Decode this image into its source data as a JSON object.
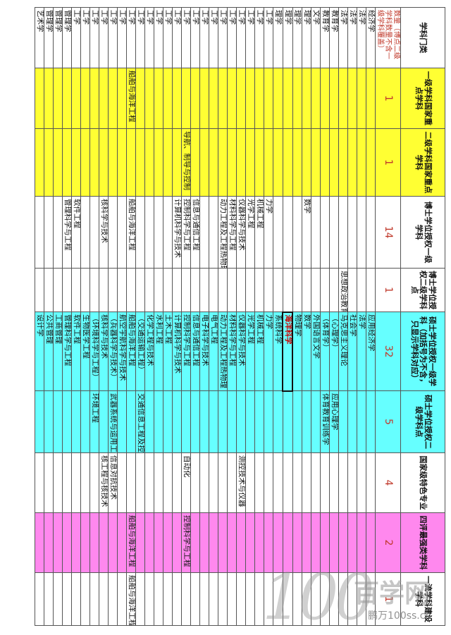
{
  "headers": {
    "category": "学科门类",
    "nat_key_l1": "一级学科国家重点学科",
    "nat_key_l2": "二级学科国家重点学科",
    "phd_l1": "博士学位授权一级学科",
    "phd_l2": "博士学位授权二级学科点",
    "ms_l1": "硕士学位授权一级学科（加括号为不含，只显示学科对应）",
    "ms_l2": "硕士学位授权二级学科点",
    "feature": "国家级特色专业",
    "eval": "四评最强类学科",
    "platform": "一流学科建设学科"
  },
  "count_row": {
    "label": "数量（博点二级学科数量不含一级学科覆盖）",
    "nat_key_l1": "1",
    "nat_key_l2": "1",
    "phd_l1": "14",
    "phd_l2": "1",
    "ms_l1": "32",
    "ms_l2": "5",
    "feature": "4",
    "eval": "2",
    "platform": "1"
  },
  "rows": [
    {
      "cat": "经济学",
      "a": "",
      "b": "",
      "c": "",
      "d": "",
      "e": "应用经济学",
      "f": "",
      "g": "",
      "h": "",
      "i": ""
    },
    {
      "cat": "法学",
      "a": "",
      "b": "",
      "c": "",
      "d": "",
      "e": "法学",
      "f": "",
      "g": "",
      "h": "",
      "i": ""
    },
    {
      "cat": "法学",
      "a": "",
      "b": "",
      "c": "",
      "d": "",
      "e": "社会学",
      "f": "",
      "g": "",
      "h": "",
      "i": ""
    },
    {
      "cat": "法学",
      "a": "",
      "b": "",
      "c": "",
      "d": "思想政治教育",
      "e": "马克思主义理论",
      "f": "",
      "g": "",
      "h": "",
      "i": ""
    },
    {
      "cat": "教育学",
      "a": "",
      "b": "",
      "c": "",
      "d": "",
      "e": "（心理学）",
      "f": "应用心理学",
      "g": "",
      "h": "",
      "i": ""
    },
    {
      "cat": "教育学",
      "a": "",
      "b": "",
      "c": "",
      "d": "",
      "e": "（体育学）",
      "f": "体育教育训练学",
      "g": "",
      "h": "",
      "i": ""
    },
    {
      "cat": "文学",
      "a": "",
      "b": "",
      "c": "",
      "d": "",
      "e": "外国语言文学",
      "f": "",
      "g": "",
      "h": "",
      "i": ""
    },
    {
      "cat": "理学",
      "a": "",
      "b": "",
      "c": "数学",
      "d": "",
      "e": "数学",
      "f": "",
      "g": "",
      "h": "",
      "i": ""
    },
    {
      "cat": "理学",
      "a": "",
      "b": "",
      "c": "",
      "d": "",
      "e": "物理学",
      "f": "",
      "g": "",
      "h": "",
      "i": ""
    },
    {
      "cat": "理学",
      "a": "",
      "b": "",
      "c": "",
      "d": "",
      "e": "海洋科学",
      "f": "",
      "g": "",
      "h": "",
      "i": "",
      "hl": true
    },
    {
      "cat": "理学",
      "a": "",
      "b": "",
      "c": "",
      "d": "",
      "e": "系统科学",
      "f": "",
      "g": "",
      "h": "",
      "i": ""
    },
    {
      "cat": "工学",
      "a": "",
      "b": "",
      "c": "力学",
      "d": "",
      "e": "力学",
      "f": "",
      "g": "",
      "h": "",
      "i": ""
    },
    {
      "cat": "工学",
      "a": "",
      "b": "",
      "c": "机械工程",
      "d": "",
      "e": "机械工程",
      "f": "",
      "g": "",
      "h": "",
      "i": ""
    },
    {
      "cat": "工学",
      "a": "",
      "b": "",
      "c": "光学工程",
      "d": "",
      "e": "光学工程",
      "f": "",
      "g": "",
      "h": "",
      "i": ""
    },
    {
      "cat": "工学",
      "a": "",
      "b": "",
      "c": "仪器科学与技术",
      "d": "",
      "e": "仪器科学与技术",
      "f": "",
      "g": "测控技术与仪器",
      "h": "",
      "i": ""
    },
    {
      "cat": "工学",
      "a": "",
      "b": "",
      "c": "材料科学与工程",
      "d": "",
      "e": "材料科学与工程",
      "f": "",
      "g": "",
      "h": "",
      "i": ""
    },
    {
      "cat": "工学",
      "a": "",
      "b": "",
      "c": "动力工程及工程热物理",
      "d": "",
      "e": "动力工程及工程热物理",
      "f": "",
      "g": "",
      "h": "",
      "i": ""
    },
    {
      "cat": "工学",
      "a": "",
      "b": "",
      "c": "",
      "d": "",
      "e": "电气工程",
      "f": "",
      "g": "",
      "h": "",
      "i": ""
    },
    {
      "cat": "工学",
      "a": "",
      "b": "",
      "c": "",
      "d": "",
      "e": "电子科学与技术",
      "f": "",
      "g": "",
      "h": "",
      "i": ""
    },
    {
      "cat": "工学",
      "a": "",
      "b": "",
      "c": "信息与通信工程",
      "d": "",
      "e": "信息与通信工程",
      "f": "",
      "g": "",
      "h": "",
      "i": ""
    },
    {
      "cat": "工学",
      "a": "",
      "b": "导航、制导与控制",
      "c": "控制科学与工程",
      "d": "",
      "e": "控制科学与工程",
      "f": "",
      "g": "自动化",
      "h": "控制科学与工程",
      "i": ""
    },
    {
      "cat": "工学",
      "a": "",
      "b": "",
      "c": "计算机科学与技术",
      "d": "",
      "e": "计算机科学与技术",
      "f": "",
      "g": "",
      "h": "",
      "i": ""
    },
    {
      "cat": "工学",
      "a": "",
      "b": "",
      "c": "",
      "d": "",
      "e": "土木工程",
      "f": "",
      "g": "",
      "h": "",
      "i": ""
    },
    {
      "cat": "工学",
      "a": "",
      "b": "",
      "c": "",
      "d": "",
      "e": "水利工程",
      "f": "",
      "g": "",
      "h": "",
      "i": ""
    },
    {
      "cat": "工学",
      "a": "",
      "b": "",
      "c": "",
      "d": "",
      "e": "化学工程与技术",
      "f": "",
      "g": "",
      "h": "",
      "i": ""
    },
    {
      "cat": "工学",
      "a": "",
      "b": "",
      "c": "",
      "d": "",
      "e": "（交通运输工程）",
      "f": "交通信息工程及控制",
      "g": "",
      "h": "",
      "i": ""
    },
    {
      "cat": "工学",
      "a": "船舶与海洋工程",
      "b": "",
      "c": "船舶与海洋工程",
      "d": "",
      "e": "船舶与海洋工程",
      "f": "",
      "g": "",
      "h": "船舶与海洋工程",
      "i": "船舶与海洋工程"
    },
    {
      "cat": "工学",
      "a": "",
      "b": "",
      "c": "",
      "d": "",
      "e": "航空宇航科学与技术",
      "f": "",
      "g": "",
      "h": "",
      "i": ""
    },
    {
      "cat": "工学",
      "a": "",
      "b": "",
      "c": "",
      "d": "",
      "e": "（兵器科学与技术）",
      "f": "武器系统与运用工程",
      "g": "信息对抗技术",
      "h": "",
      "i": ""
    },
    {
      "cat": "工学",
      "a": "",
      "b": "",
      "c": "核科学与技术",
      "d": "",
      "e": "核科学与技术",
      "f": "",
      "g": "核工程与核技术",
      "h": "",
      "i": ""
    },
    {
      "cat": "工学",
      "a": "",
      "b": "",
      "c": "",
      "d": "",
      "e": "（环境科学与工程）",
      "f": "环境工程",
      "g": "",
      "h": "",
      "i": ""
    },
    {
      "cat": "工学",
      "a": "",
      "b": "",
      "c": "",
      "d": "",
      "e": "生物医学工程",
      "f": "",
      "g": "",
      "h": "",
      "i": ""
    },
    {
      "cat": "工学",
      "a": "",
      "b": "",
      "c": "软件工程",
      "d": "",
      "e": "软件工程",
      "f": "",
      "g": "",
      "h": "",
      "i": ""
    },
    {
      "cat": "管理学",
      "a": "",
      "b": "",
      "c": "管理科学与工程",
      "d": "",
      "e": "管理科学与工程",
      "f": "",
      "g": "",
      "h": "",
      "i": ""
    },
    {
      "cat": "管理学",
      "a": "",
      "b": "",
      "c": "",
      "d": "",
      "e": "工商管理",
      "f": "",
      "g": "",
      "h": "",
      "i": ""
    },
    {
      "cat": "管理学",
      "a": "",
      "b": "",
      "c": "",
      "d": "",
      "e": "公共管理",
      "f": "",
      "g": "",
      "h": "",
      "i": ""
    },
    {
      "cat": "艺术学",
      "a": "",
      "b": "",
      "c": "",
      "d": "",
      "e": "设计学",
      "f": "",
      "g": "",
      "h": "",
      "i": ""
    }
  ],
  "watermark": {
    "digits": "100",
    "brand": "百学网",
    "site": "鹏万100ss.cn"
  }
}
